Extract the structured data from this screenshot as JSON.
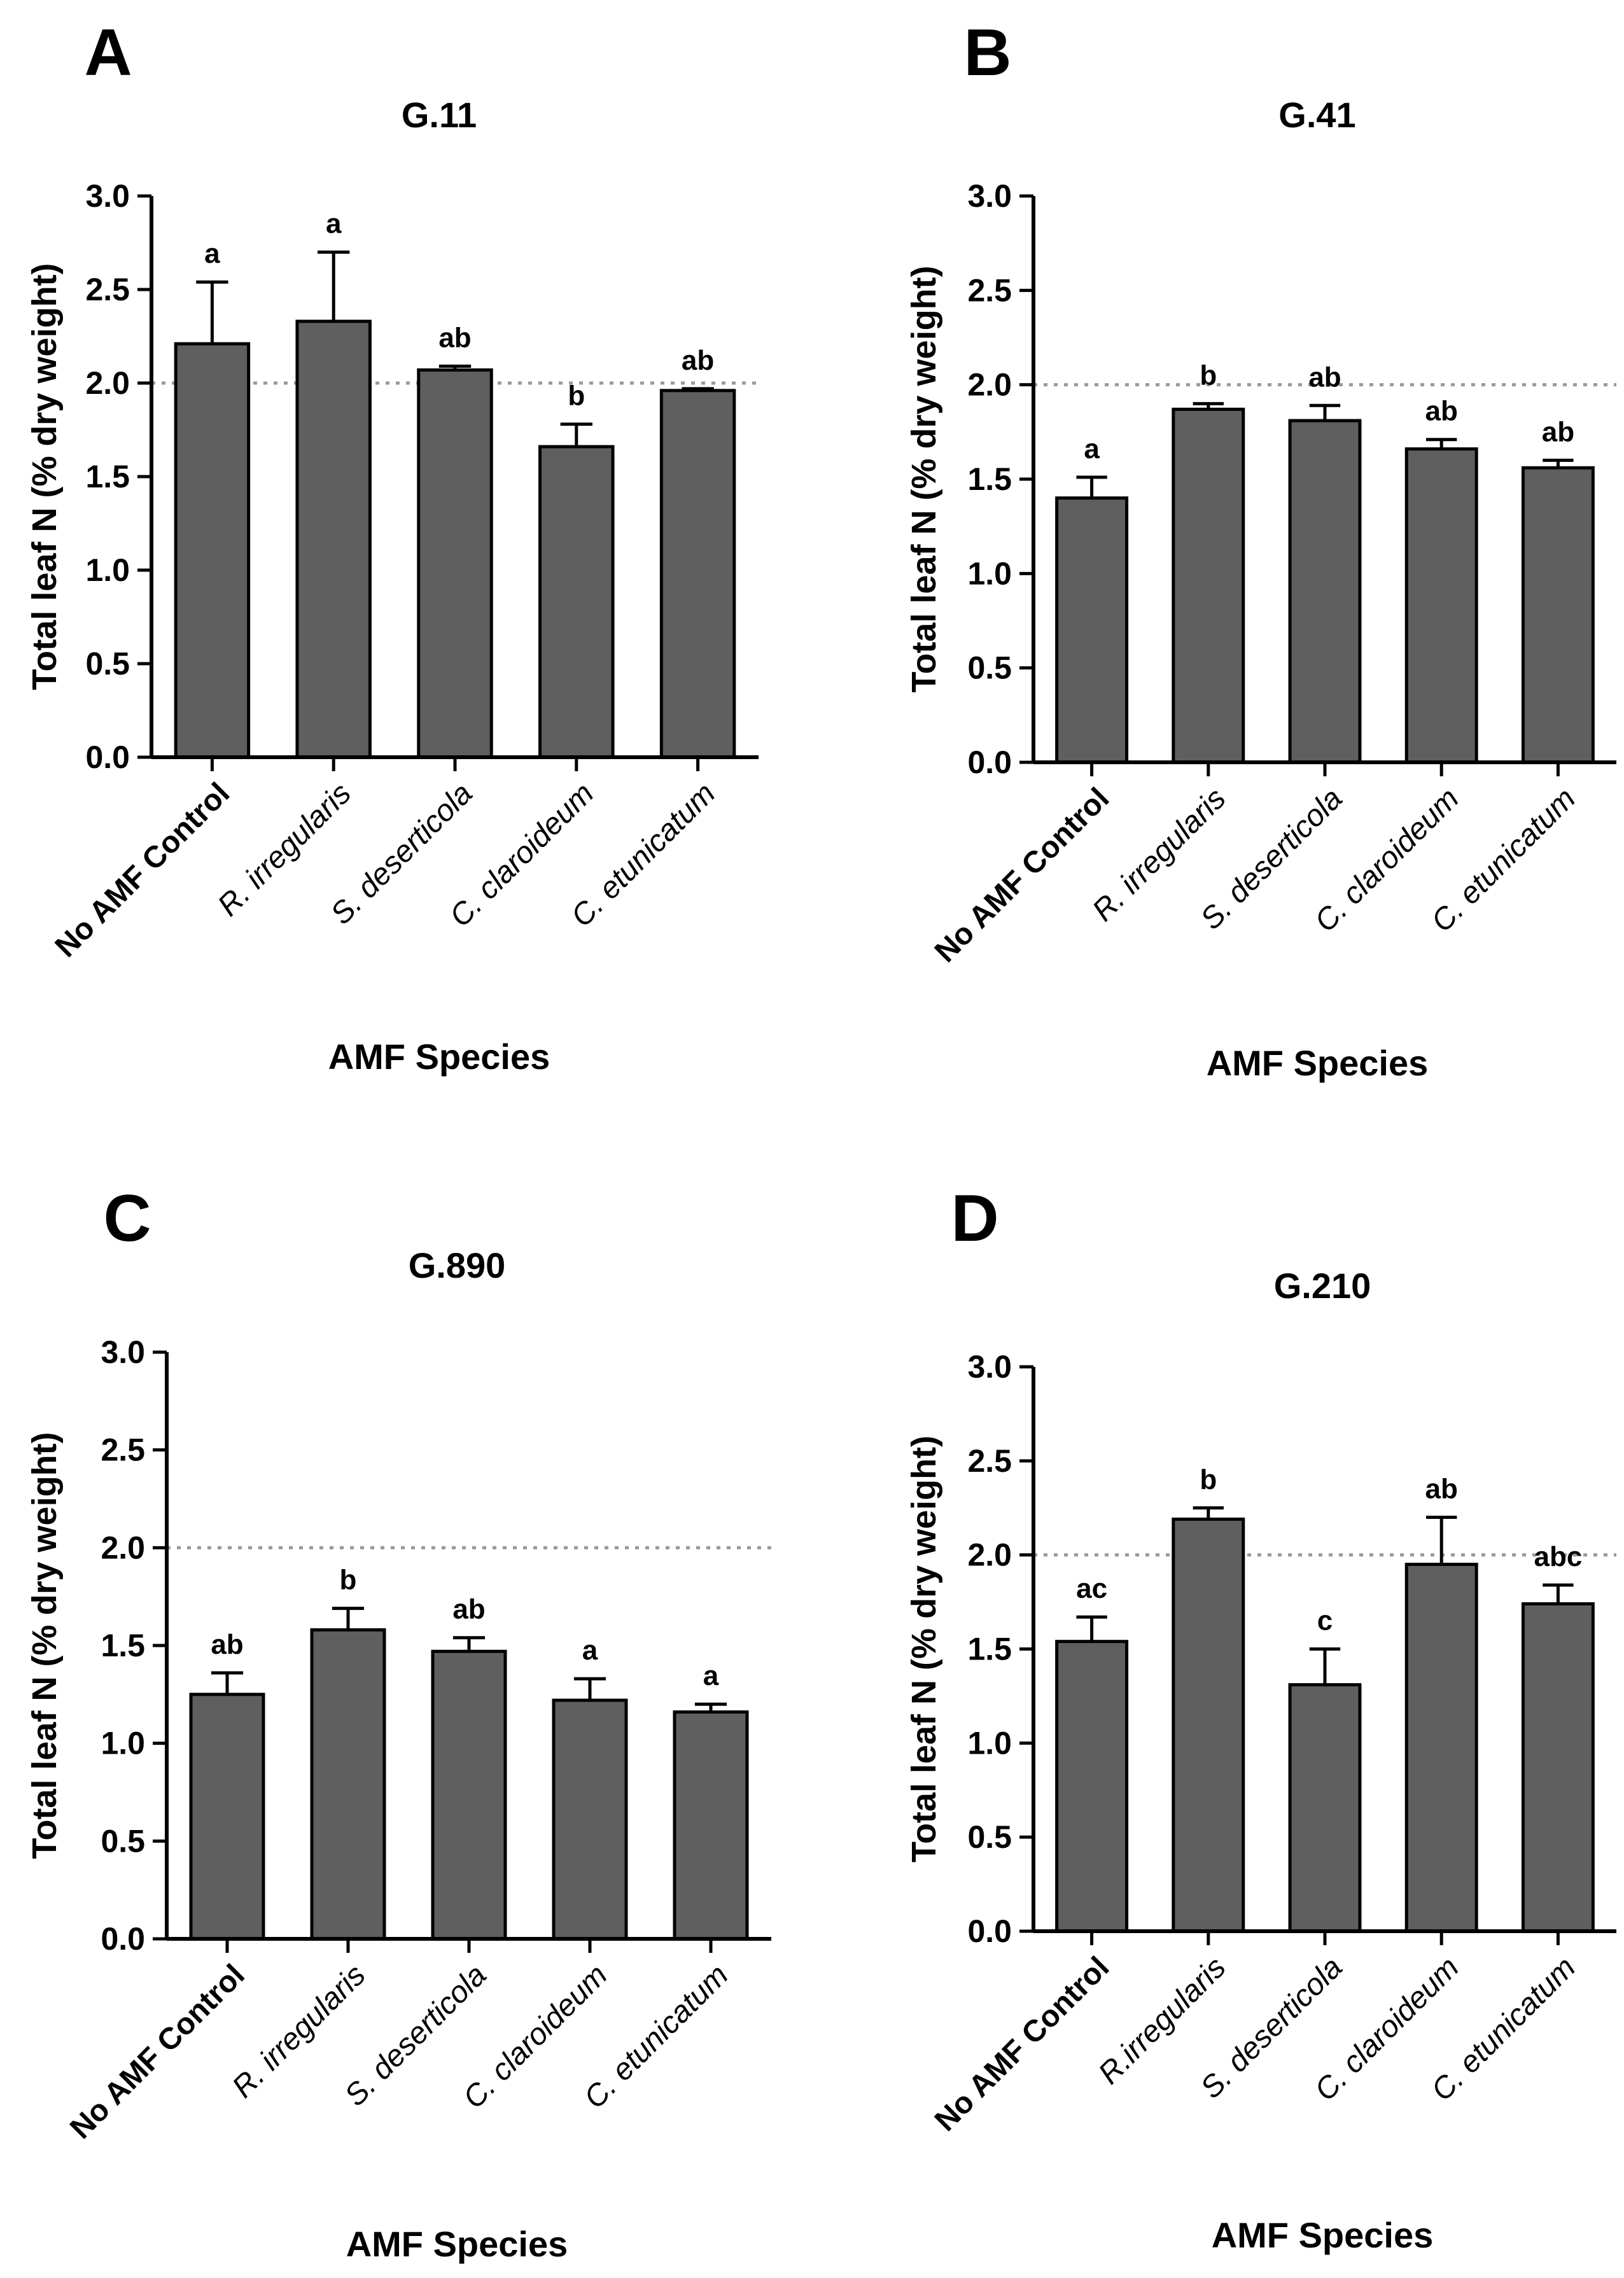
{
  "chart_data": [
    {
      "panel": "A",
      "type": "bar",
      "title": "G.11",
      "xlabel": "AMF Species",
      "ylabel": "Total leaf N (% dry weight)",
      "ylim": [
        0,
        3.0
      ],
      "yticks": [
        "0.0",
        "0.5",
        "1.0",
        "1.5",
        "2.0",
        "2.5",
        "3.0"
      ],
      "reference_line": 2.0,
      "categories": [
        "No AMF Control",
        "R. irregularis",
        "S. deserticola",
        "C. claroideum",
        "C. etunicatum"
      ],
      "values": [
        2.21,
        2.33,
        2.07,
        1.66,
        1.96
      ],
      "errors": [
        0.33,
        0.37,
        0.02,
        0.12,
        0.01
      ],
      "letters": [
        "a",
        "a",
        "ab",
        "b",
        "ab"
      ],
      "grid": false
    },
    {
      "panel": "B",
      "type": "bar",
      "title": "G.41",
      "xlabel": "AMF Species",
      "ylabel": "Total leaf N (% dry weight)",
      "ylim": [
        0,
        3.0
      ],
      "yticks": [
        "0.0",
        "0.5",
        "1.0",
        "1.5",
        "2.0",
        "2.5",
        "3.0"
      ],
      "reference_line": 2.0,
      "categories": [
        "No AMF Control",
        "R. irregularis",
        "S. deserticola",
        "C. claroideum",
        "C. etunicatum"
      ],
      "values": [
        1.4,
        1.87,
        1.81,
        1.66,
        1.56
      ],
      "errors": [
        0.11,
        0.03,
        0.08,
        0.05,
        0.04
      ],
      "letters": [
        "a",
        "b",
        "ab",
        "ab",
        "ab"
      ],
      "grid": false
    },
    {
      "panel": "C",
      "type": "bar",
      "title": "G.890",
      "xlabel": "AMF Species",
      "ylabel": "Total leaf N (% dry weight)",
      "ylim": [
        0,
        3.0
      ],
      "yticks": [
        "0.0",
        "0.5",
        "1.0",
        "1.5",
        "2.0",
        "2.5",
        "3.0"
      ],
      "reference_line": 2.0,
      "categories": [
        "No AMF Control",
        "R. irregularis",
        "S. deserticola",
        "C. claroideum",
        "C. etunicatum"
      ],
      "values": [
        1.25,
        1.58,
        1.47,
        1.22,
        1.16
      ],
      "errors": [
        0.11,
        0.11,
        0.07,
        0.11,
        0.04
      ],
      "letters": [
        "ab",
        "b",
        "ab",
        "a",
        "a"
      ],
      "grid": false
    },
    {
      "panel": "D",
      "type": "bar",
      "title": "G.210",
      "xlabel": "AMF Species",
      "ylabel": "Total leaf N (% dry weight)",
      "ylim": [
        0,
        3.0
      ],
      "yticks": [
        "0.0",
        "0.5",
        "1.0",
        "1.5",
        "2.0",
        "2.5",
        "3.0"
      ],
      "reference_line": 2.0,
      "categories": [
        "No AMF Control",
        "R.irregularis",
        "S. deserticola",
        "C. claroideum",
        "C. etunicatum"
      ],
      "values": [
        1.54,
        2.19,
        1.31,
        1.95,
        1.74
      ],
      "errors": [
        0.13,
        0.06,
        0.19,
        0.25,
        0.1
      ],
      "letters": [
        "ac",
        "b",
        "c",
        "ab",
        "abc"
      ],
      "grid": false
    }
  ],
  "colors": {
    "bar_fill": "#5f5f5f",
    "bar_stroke": "#000000",
    "axis": "#000000",
    "reference_line": "#9a9a9a"
  }
}
